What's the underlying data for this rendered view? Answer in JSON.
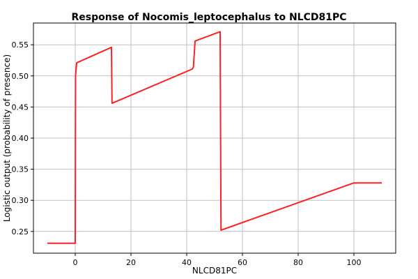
{
  "chart_data": {
    "type": "line",
    "title": "Response of Nocomis_leptocephalus to NLCD81PC",
    "xlabel": "NLCD81PC",
    "ylabel": "Logistic output (probability of presence)",
    "xlim": [
      -15,
      115
    ],
    "ylim": [
      0.215,
      0.585
    ],
    "x_ticks": [
      0,
      20,
      40,
      60,
      80,
      100
    ],
    "x_tick_labels": [
      "0",
      "20",
      "40",
      "60",
      "80",
      "100"
    ],
    "y_ticks": [
      0.25,
      0.3,
      0.35,
      0.4,
      0.45,
      0.5,
      0.55
    ],
    "y_tick_labels": [
      "0.25",
      "0.30",
      "0.35",
      "0.40",
      "0.45",
      "0.50",
      "0.55"
    ],
    "grid": true,
    "line_color": "#ff2020",
    "series": [
      {
        "x": [
          -10,
          0,
          0.1,
          0.5,
          13,
          13.2,
          42,
          42.4,
          43,
          52,
          52.3,
          100,
          110
        ],
        "y": [
          0.231,
          0.231,
          0.5,
          0.521,
          0.546,
          0.456,
          0.511,
          0.514,
          0.556,
          0.571,
          0.252,
          0.328,
          0.328
        ]
      }
    ]
  }
}
